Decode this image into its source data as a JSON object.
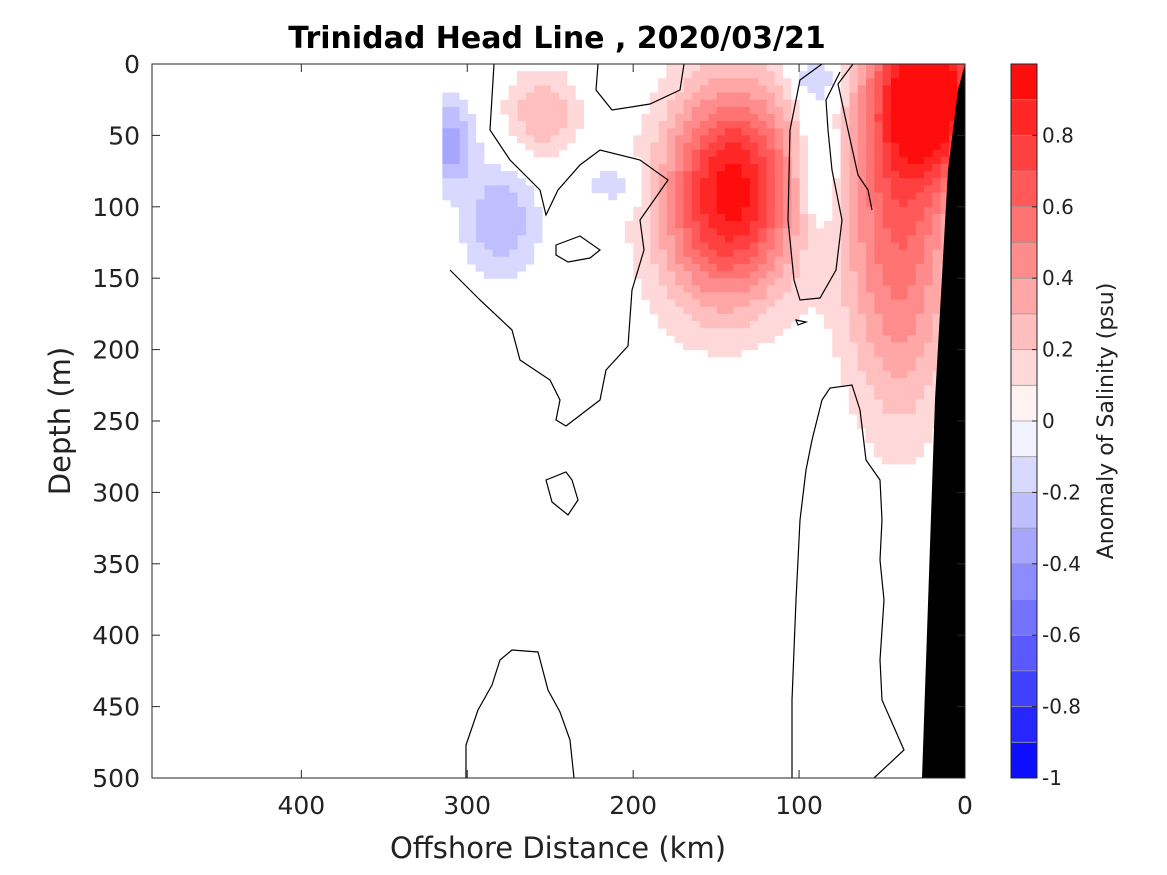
{
  "chart_data": {
    "type": "heatmap",
    "title": "Trinidad Head Line , 2020/03/21",
    "xlabel": "Offshore Distance (km)",
    "ylabel": "Depth (m)",
    "xlim": [
      490,
      0
    ],
    "ylim": [
      0,
      500
    ],
    "x_ticks": [
      400,
      300,
      200,
      100,
      0
    ],
    "y_ticks": [
      0,
      50,
      100,
      150,
      200,
      250,
      300,
      350,
      400,
      450,
      500
    ],
    "colorbar": {
      "label": "Anomaly of Salinity (psu)",
      "range": [
        -1,
        1
      ],
      "ticks": [
        0.8,
        0.6,
        0.4,
        0.2,
        0,
        -0.2,
        -0.4,
        -0.6,
        -0.8,
        -1
      ],
      "low_color": "#0000ff",
      "mid_color": "#ffffff",
      "high_color": "#ff0000"
    },
    "land_color": "#000000",
    "contour_color": "#000000",
    "anomalies": [
      {
        "x": 20,
        "depth": 20,
        "value": 0.95,
        "sx": 22,
        "sd": 40
      },
      {
        "x": 40,
        "depth": 80,
        "value": 0.5,
        "sx": 25,
        "sd": 80
      },
      {
        "x": 40,
        "depth": 180,
        "value": 0.22,
        "sx": 22,
        "sd": 70
      },
      {
        "x": 140,
        "depth": 80,
        "value": 0.82,
        "sx": 28,
        "sd": 50
      },
      {
        "x": 150,
        "depth": 130,
        "value": 0.25,
        "sx": 30,
        "sd": 45
      },
      {
        "x": 255,
        "depth": 35,
        "value": 0.3,
        "sx": 16,
        "sd": 22
      },
      {
        "x": 90,
        "depth": 10,
        "value": -0.25,
        "sx": 10,
        "sd": 12
      },
      {
        "x": 88,
        "depth": 70,
        "value": -0.3,
        "sx": 10,
        "sd": 35
      },
      {
        "x": 310,
        "depth": 55,
        "value": -0.35,
        "sx": 10,
        "sd": 22
      },
      {
        "x": 280,
        "depth": 110,
        "value": -0.3,
        "sx": 16,
        "sd": 28
      },
      {
        "x": 210,
        "depth": 85,
        "value": -0.2,
        "sx": 14,
        "sd": 10
      }
    ],
    "anomaly_left_edge_km": 315,
    "anomaly_max_depth_m": 330
  }
}
